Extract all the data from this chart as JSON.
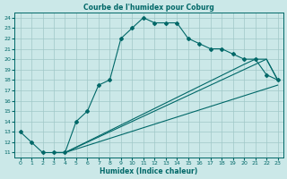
{
  "title": "Courbe de l'humidex pour Coburg",
  "xlabel": "Humidex (Indice chaleur)",
  "bg_color": "#cbe8e8",
  "grid_color": "#a0c8c8",
  "line_color": "#006868",
  "xlim": [
    -0.5,
    23.5
  ],
  "ylim": [
    10.5,
    24.5
  ],
  "xticks": [
    0,
    1,
    2,
    3,
    4,
    5,
    6,
    7,
    8,
    9,
    10,
    11,
    12,
    13,
    14,
    15,
    16,
    17,
    18,
    19,
    20,
    21,
    22,
    23
  ],
  "yticks": [
    11,
    12,
    13,
    14,
    15,
    16,
    17,
    18,
    19,
    20,
    21,
    22,
    23,
    24
  ],
  "lines": [
    {
      "x": [
        0,
        1,
        2,
        3,
        4,
        5,
        6,
        7,
        8,
        9,
        10,
        11,
        12,
        13,
        14,
        15,
        16,
        17,
        18,
        19,
        20,
        21,
        22,
        23
      ],
      "y": [
        13,
        12,
        11,
        11,
        11,
        14,
        15,
        17.5,
        18,
        22,
        23,
        24,
        23.5,
        23.5,
        23.5,
        22,
        21.5,
        21,
        21,
        20.5,
        20,
        20,
        18.5,
        18
      ],
      "marker": "D",
      "markersize": 2.0
    },
    {
      "x": [
        3,
        4,
        23
      ],
      "y": [
        11,
        11,
        17.5
      ],
      "marker": null,
      "markersize": 0
    },
    {
      "x": [
        3,
        4,
        21,
        22,
        23
      ],
      "y": [
        11,
        11,
        19.5,
        20,
        18
      ],
      "marker": null,
      "markersize": 0
    },
    {
      "x": [
        3,
        4,
        20,
        21,
        22,
        23
      ],
      "y": [
        11,
        11,
        19.5,
        20,
        20,
        18
      ],
      "marker": null,
      "markersize": 0
    }
  ]
}
